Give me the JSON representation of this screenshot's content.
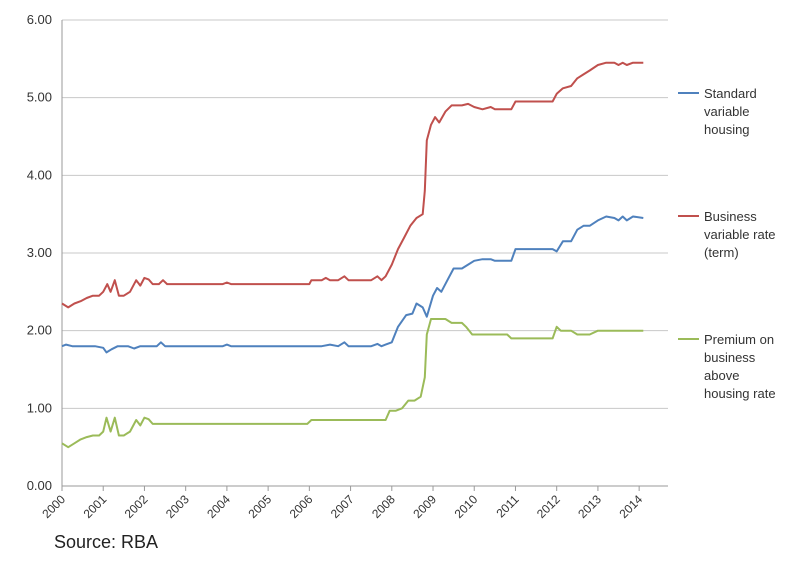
{
  "source_note": "Source: RBA",
  "chart_data": {
    "type": "line",
    "title": "",
    "xlabel": "",
    "ylabel": "",
    "ylim": [
      0,
      6
    ],
    "xlim": [
      2000,
      2014.7
    ],
    "grid": "horizontal",
    "legend_position": "right",
    "y_ticks": [
      "0.00",
      "1.00",
      "2.00",
      "3.00",
      "4.00",
      "5.00",
      "6.00"
    ],
    "x_ticks": [
      "2000",
      "2001",
      "2002",
      "2003",
      "2004",
      "2005",
      "2006",
      "2007",
      "2008",
      "2009",
      "2010",
      "2011",
      "2012",
      "2013",
      "2014"
    ],
    "series": [
      {
        "name": "Standard variable housing",
        "legend_lines": [
          "Standard",
          "variable",
          "housing"
        ],
        "color": "#4f81bd",
        "points": [
          [
            2000.0,
            1.8
          ],
          [
            2000.1,
            1.82
          ],
          [
            2000.25,
            1.8
          ],
          [
            2000.5,
            1.8
          ],
          [
            2000.8,
            1.8
          ],
          [
            2001.0,
            1.78
          ],
          [
            2001.08,
            1.72
          ],
          [
            2001.2,
            1.76
          ],
          [
            2001.35,
            1.8
          ],
          [
            2001.6,
            1.8
          ],
          [
            2001.75,
            1.77
          ],
          [
            2001.9,
            1.8
          ],
          [
            2002.1,
            1.8
          ],
          [
            2002.3,
            1.8
          ],
          [
            2002.4,
            1.85
          ],
          [
            2002.5,
            1.8
          ],
          [
            2003.0,
            1.8
          ],
          [
            2003.5,
            1.8
          ],
          [
            2003.9,
            1.8
          ],
          [
            2004.0,
            1.82
          ],
          [
            2004.1,
            1.8
          ],
          [
            2005.0,
            1.8
          ],
          [
            2006.0,
            1.8
          ],
          [
            2006.3,
            1.8
          ],
          [
            2006.5,
            1.82
          ],
          [
            2006.7,
            1.8
          ],
          [
            2006.85,
            1.85
          ],
          [
            2006.95,
            1.8
          ],
          [
            2007.5,
            1.8
          ],
          [
            2007.65,
            1.83
          ],
          [
            2007.75,
            1.8
          ],
          [
            2007.85,
            1.82
          ],
          [
            2008.0,
            1.85
          ],
          [
            2008.15,
            2.05
          ],
          [
            2008.35,
            2.2
          ],
          [
            2008.5,
            2.22
          ],
          [
            2008.6,
            2.35
          ],
          [
            2008.75,
            2.3
          ],
          [
            2008.85,
            2.18
          ],
          [
            2009.0,
            2.45
          ],
          [
            2009.1,
            2.55
          ],
          [
            2009.2,
            2.5
          ],
          [
            2009.35,
            2.65
          ],
          [
            2009.5,
            2.8
          ],
          [
            2009.7,
            2.8
          ],
          [
            2009.85,
            2.85
          ],
          [
            2010.0,
            2.9
          ],
          [
            2010.2,
            2.92
          ],
          [
            2010.4,
            2.92
          ],
          [
            2010.5,
            2.9
          ],
          [
            2010.9,
            2.9
          ],
          [
            2011.0,
            3.05
          ],
          [
            2011.5,
            3.05
          ],
          [
            2011.9,
            3.05
          ],
          [
            2012.0,
            3.02
          ],
          [
            2012.15,
            3.15
          ],
          [
            2012.35,
            3.15
          ],
          [
            2012.5,
            3.3
          ],
          [
            2012.65,
            3.35
          ],
          [
            2012.8,
            3.35
          ],
          [
            2013.0,
            3.42
          ],
          [
            2013.2,
            3.47
          ],
          [
            2013.4,
            3.45
          ],
          [
            2013.5,
            3.42
          ],
          [
            2013.6,
            3.47
          ],
          [
            2013.7,
            3.42
          ],
          [
            2013.85,
            3.47
          ],
          [
            2014.1,
            3.45
          ]
        ]
      },
      {
        "name": "Business variable rate (term)",
        "legend_lines": [
          "Business",
          "variable rate",
          "(term)"
        ],
        "color": "#c0504d",
        "points": [
          [
            2000.0,
            2.35
          ],
          [
            2000.15,
            2.3
          ],
          [
            2000.3,
            2.35
          ],
          [
            2000.45,
            2.38
          ],
          [
            2000.6,
            2.42
          ],
          [
            2000.75,
            2.45
          ],
          [
            2000.9,
            2.45
          ],
          [
            2001.0,
            2.5
          ],
          [
            2001.1,
            2.6
          ],
          [
            2001.18,
            2.5
          ],
          [
            2001.28,
            2.65
          ],
          [
            2001.38,
            2.45
          ],
          [
            2001.5,
            2.45
          ],
          [
            2001.65,
            2.5
          ],
          [
            2001.8,
            2.65
          ],
          [
            2001.9,
            2.58
          ],
          [
            2002.0,
            2.68
          ],
          [
            2002.1,
            2.66
          ],
          [
            2002.2,
            2.6
          ],
          [
            2002.35,
            2.6
          ],
          [
            2002.45,
            2.65
          ],
          [
            2002.55,
            2.6
          ],
          [
            2003.0,
            2.6
          ],
          [
            2003.5,
            2.6
          ],
          [
            2003.9,
            2.6
          ],
          [
            2004.0,
            2.62
          ],
          [
            2004.1,
            2.6
          ],
          [
            2005.0,
            2.6
          ],
          [
            2006.0,
            2.6
          ],
          [
            2006.05,
            2.65
          ],
          [
            2006.3,
            2.65
          ],
          [
            2006.4,
            2.68
          ],
          [
            2006.5,
            2.65
          ],
          [
            2006.7,
            2.65
          ],
          [
            2006.85,
            2.7
          ],
          [
            2006.95,
            2.65
          ],
          [
            2007.5,
            2.65
          ],
          [
            2007.65,
            2.7
          ],
          [
            2007.75,
            2.65
          ],
          [
            2007.85,
            2.7
          ],
          [
            2008.0,
            2.85
          ],
          [
            2008.15,
            3.05
          ],
          [
            2008.3,
            3.2
          ],
          [
            2008.45,
            3.35
          ],
          [
            2008.6,
            3.45
          ],
          [
            2008.75,
            3.5
          ],
          [
            2008.8,
            3.8
          ],
          [
            2008.85,
            4.45
          ],
          [
            2008.95,
            4.65
          ],
          [
            2009.05,
            4.75
          ],
          [
            2009.15,
            4.68
          ],
          [
            2009.3,
            4.82
          ],
          [
            2009.45,
            4.9
          ],
          [
            2009.7,
            4.9
          ],
          [
            2009.85,
            4.92
          ],
          [
            2010.0,
            4.88
          ],
          [
            2010.2,
            4.85
          ],
          [
            2010.4,
            4.88
          ],
          [
            2010.5,
            4.85
          ],
          [
            2010.9,
            4.85
          ],
          [
            2011.0,
            4.95
          ],
          [
            2011.5,
            4.95
          ],
          [
            2011.9,
            4.95
          ],
          [
            2012.0,
            5.05
          ],
          [
            2012.15,
            5.12
          ],
          [
            2012.35,
            5.15
          ],
          [
            2012.5,
            5.25
          ],
          [
            2012.65,
            5.3
          ],
          [
            2012.8,
            5.35
          ],
          [
            2013.0,
            5.42
          ],
          [
            2013.2,
            5.45
          ],
          [
            2013.4,
            5.45
          ],
          [
            2013.5,
            5.42
          ],
          [
            2013.6,
            5.45
          ],
          [
            2013.7,
            5.42
          ],
          [
            2013.85,
            5.45
          ],
          [
            2014.1,
            5.45
          ]
        ]
      },
      {
        "name": "Premium on business above housing rate",
        "legend_lines": [
          "Premium on",
          "business",
          "above",
          "housing rate"
        ],
        "color": "#9bbb59",
        "points": [
          [
            2000.0,
            0.55
          ],
          [
            2000.15,
            0.5
          ],
          [
            2000.3,
            0.55
          ],
          [
            2000.45,
            0.6
          ],
          [
            2000.6,
            0.63
          ],
          [
            2000.75,
            0.65
          ],
          [
            2000.9,
            0.65
          ],
          [
            2001.0,
            0.7
          ],
          [
            2001.08,
            0.88
          ],
          [
            2001.18,
            0.7
          ],
          [
            2001.28,
            0.88
          ],
          [
            2001.38,
            0.65
          ],
          [
            2001.5,
            0.65
          ],
          [
            2001.65,
            0.7
          ],
          [
            2001.8,
            0.85
          ],
          [
            2001.9,
            0.78
          ],
          [
            2002.0,
            0.88
          ],
          [
            2002.1,
            0.86
          ],
          [
            2002.2,
            0.8
          ],
          [
            2002.5,
            0.8
          ],
          [
            2003.0,
            0.8
          ],
          [
            2004.0,
            0.8
          ],
          [
            2005.0,
            0.8
          ],
          [
            2005.95,
            0.8
          ],
          [
            2006.05,
            0.85
          ],
          [
            2006.5,
            0.85
          ],
          [
            2007.0,
            0.85
          ],
          [
            2007.5,
            0.85
          ],
          [
            2007.85,
            0.85
          ],
          [
            2007.95,
            0.97
          ],
          [
            2008.1,
            0.97
          ],
          [
            2008.25,
            1.0
          ],
          [
            2008.4,
            1.1
          ],
          [
            2008.55,
            1.1
          ],
          [
            2008.7,
            1.15
          ],
          [
            2008.8,
            1.4
          ],
          [
            2008.85,
            1.95
          ],
          [
            2008.95,
            2.15
          ],
          [
            2009.3,
            2.15
          ],
          [
            2009.45,
            2.1
          ],
          [
            2009.7,
            2.1
          ],
          [
            2009.8,
            2.05
          ],
          [
            2009.95,
            1.95
          ],
          [
            2010.5,
            1.95
          ],
          [
            2010.8,
            1.95
          ],
          [
            2010.9,
            1.9
          ],
          [
            2011.9,
            1.9
          ],
          [
            2012.0,
            2.05
          ],
          [
            2012.1,
            2.0
          ],
          [
            2012.35,
            2.0
          ],
          [
            2012.5,
            1.95
          ],
          [
            2012.8,
            1.95
          ],
          [
            2013.0,
            2.0
          ],
          [
            2013.5,
            2.0
          ],
          [
            2014.1,
            2.0
          ]
        ]
      }
    ]
  }
}
